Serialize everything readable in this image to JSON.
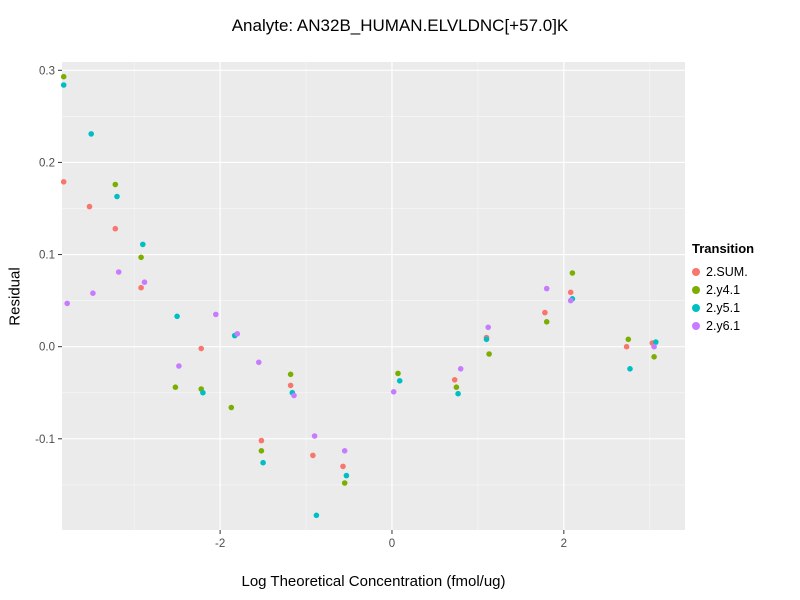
{
  "chart_data": {
    "type": "scatter",
    "title": "Analyte: AN32B_HUMAN.ELVLDNC[+57.0]K",
    "xlabel": "Log Theoretical Concentration (fmol/ug)",
    "ylabel": "Residual",
    "legend_title": "Transition",
    "legend_position": "right",
    "grid": true,
    "panel_background": "#EBEBEB",
    "grid_major_color": "#FFFFFF",
    "grid_minor_color": "#FFFFFF",
    "tick_label_color": "#4D4D4D",
    "xlim": [
      -3.84,
      3.41
    ],
    "ylim": [
      -0.199,
      0.309
    ],
    "x_ticks": [
      {
        "v": -2,
        "label": "-2"
      },
      {
        "v": 0,
        "label": "0"
      },
      {
        "v": 2,
        "label": "2"
      }
    ],
    "y_ticks": [
      {
        "v": 0.3,
        "label": "0.3"
      },
      {
        "v": 0.2,
        "label": "0.2"
      },
      {
        "v": 0.1,
        "label": "0.1"
      },
      {
        "v": 0.0,
        "label": "0.0"
      },
      {
        "v": -0.1,
        "label": "-0.1"
      }
    ],
    "x_minor_ticks": [
      -3,
      -1,
      1,
      3
    ],
    "y_minor_ticks": [
      0.25,
      0.15,
      0.05,
      -0.05,
      -0.15
    ],
    "series": [
      {
        "name": "2.SUM.",
        "color": "#F8766D",
        "points": [
          [
            -3.82,
            0.179
          ],
          [
            -3.52,
            0.152
          ],
          [
            -3.22,
            0.128
          ],
          [
            -2.92,
            0.064
          ],
          [
            -2.22,
            -0.002
          ],
          [
            -1.52,
            -0.102
          ],
          [
            -1.18,
            -0.042
          ],
          [
            -0.92,
            -0.118
          ],
          [
            -0.57,
            -0.13
          ],
          [
            0.73,
            -0.036
          ],
          [
            1.1,
            0.01
          ],
          [
            1.78,
            0.037
          ],
          [
            2.08,
            0.059
          ],
          [
            2.73,
            0.0
          ],
          [
            3.03,
            0.004
          ]
        ]
      },
      {
        "name": "2.y4.1",
        "color": "#7CAE00",
        "points": [
          [
            -3.82,
            0.293
          ],
          [
            -3.22,
            0.176
          ],
          [
            -2.92,
            0.097
          ],
          [
            -2.52,
            -0.044
          ],
          [
            -2.22,
            -0.046
          ],
          [
            -1.87,
            -0.066
          ],
          [
            -1.52,
            -0.113
          ],
          [
            -1.18,
            -0.03
          ],
          [
            -0.55,
            -0.148
          ],
          [
            0.07,
            -0.029
          ],
          [
            0.75,
            -0.044
          ],
          [
            1.13,
            -0.008
          ],
          [
            1.8,
            0.027
          ],
          [
            2.1,
            0.08
          ],
          [
            2.75,
            0.008
          ],
          [
            3.05,
            -0.011
          ]
        ]
      },
      {
        "name": "2.y5.1",
        "color": "#00BFC4",
        "points": [
          [
            -3.82,
            0.284
          ],
          [
            -3.5,
            0.231
          ],
          [
            -3.2,
            0.163
          ],
          [
            -2.9,
            0.111
          ],
          [
            -2.5,
            0.033
          ],
          [
            -2.2,
            -0.05
          ],
          [
            -1.83,
            0.012
          ],
          [
            -1.5,
            -0.126
          ],
          [
            -1.16,
            -0.05
          ],
          [
            -0.88,
            -0.183
          ],
          [
            -0.53,
            -0.14
          ],
          [
            0.09,
            -0.037
          ],
          [
            0.77,
            -0.051
          ],
          [
            1.1,
            0.008
          ],
          [
            2.1,
            0.052
          ],
          [
            2.77,
            -0.024
          ],
          [
            3.07,
            0.005
          ]
        ]
      },
      {
        "name": "2.y6.1",
        "color": "#C77CFF",
        "points": [
          [
            -3.78,
            0.047
          ],
          [
            -3.48,
            0.058
          ],
          [
            -3.18,
            0.081
          ],
          [
            -2.88,
            0.07
          ],
          [
            -2.48,
            -0.021
          ],
          [
            -2.05,
            0.035
          ],
          [
            -1.8,
            0.014
          ],
          [
            -1.55,
            -0.017
          ],
          [
            -1.14,
            -0.053
          ],
          [
            -0.9,
            -0.097
          ],
          [
            -0.55,
            -0.113
          ],
          [
            0.02,
            -0.049
          ],
          [
            0.8,
            -0.024
          ],
          [
            1.12,
            0.021
          ],
          [
            1.8,
            0.063
          ],
          [
            2.08,
            0.05
          ],
          [
            3.05,
            0.0
          ]
        ]
      }
    ]
  }
}
